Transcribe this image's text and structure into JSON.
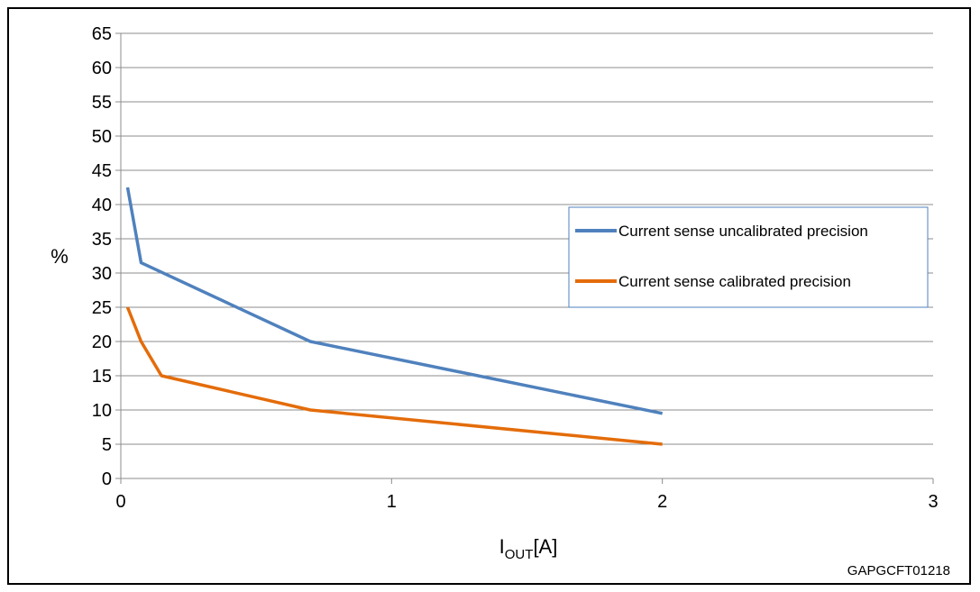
{
  "chart_data": {
    "type": "line",
    "xlabel": "I",
    "xlabel_sub": "OUT",
    "xlabel_unit": "[A]",
    "ylabel": "%",
    "xlim": [
      0,
      3
    ],
    "ylim": [
      0,
      65
    ],
    "xticks": [
      0,
      1,
      2,
      3
    ],
    "yticks": [
      0,
      5,
      10,
      15,
      20,
      25,
      30,
      35,
      40,
      45,
      50,
      55,
      60,
      65
    ],
    "grid": "horizontal",
    "legend_position": "right",
    "series": [
      {
        "name": "Current sense uncalibrated precision",
        "color": "#4f81bd",
        "x": [
          0.025,
          0.075,
          0.7,
          2.0
        ],
        "y": [
          42.5,
          31.5,
          20,
          9.5
        ]
      },
      {
        "name": "Current sense calibrated precision",
        "color": "#e46c0a",
        "x": [
          0.025,
          0.075,
          0.15,
          0.7,
          2.0
        ],
        "y": [
          25,
          20,
          15,
          10,
          5
        ]
      }
    ],
    "figure_code": "GAPGCFT01218"
  }
}
